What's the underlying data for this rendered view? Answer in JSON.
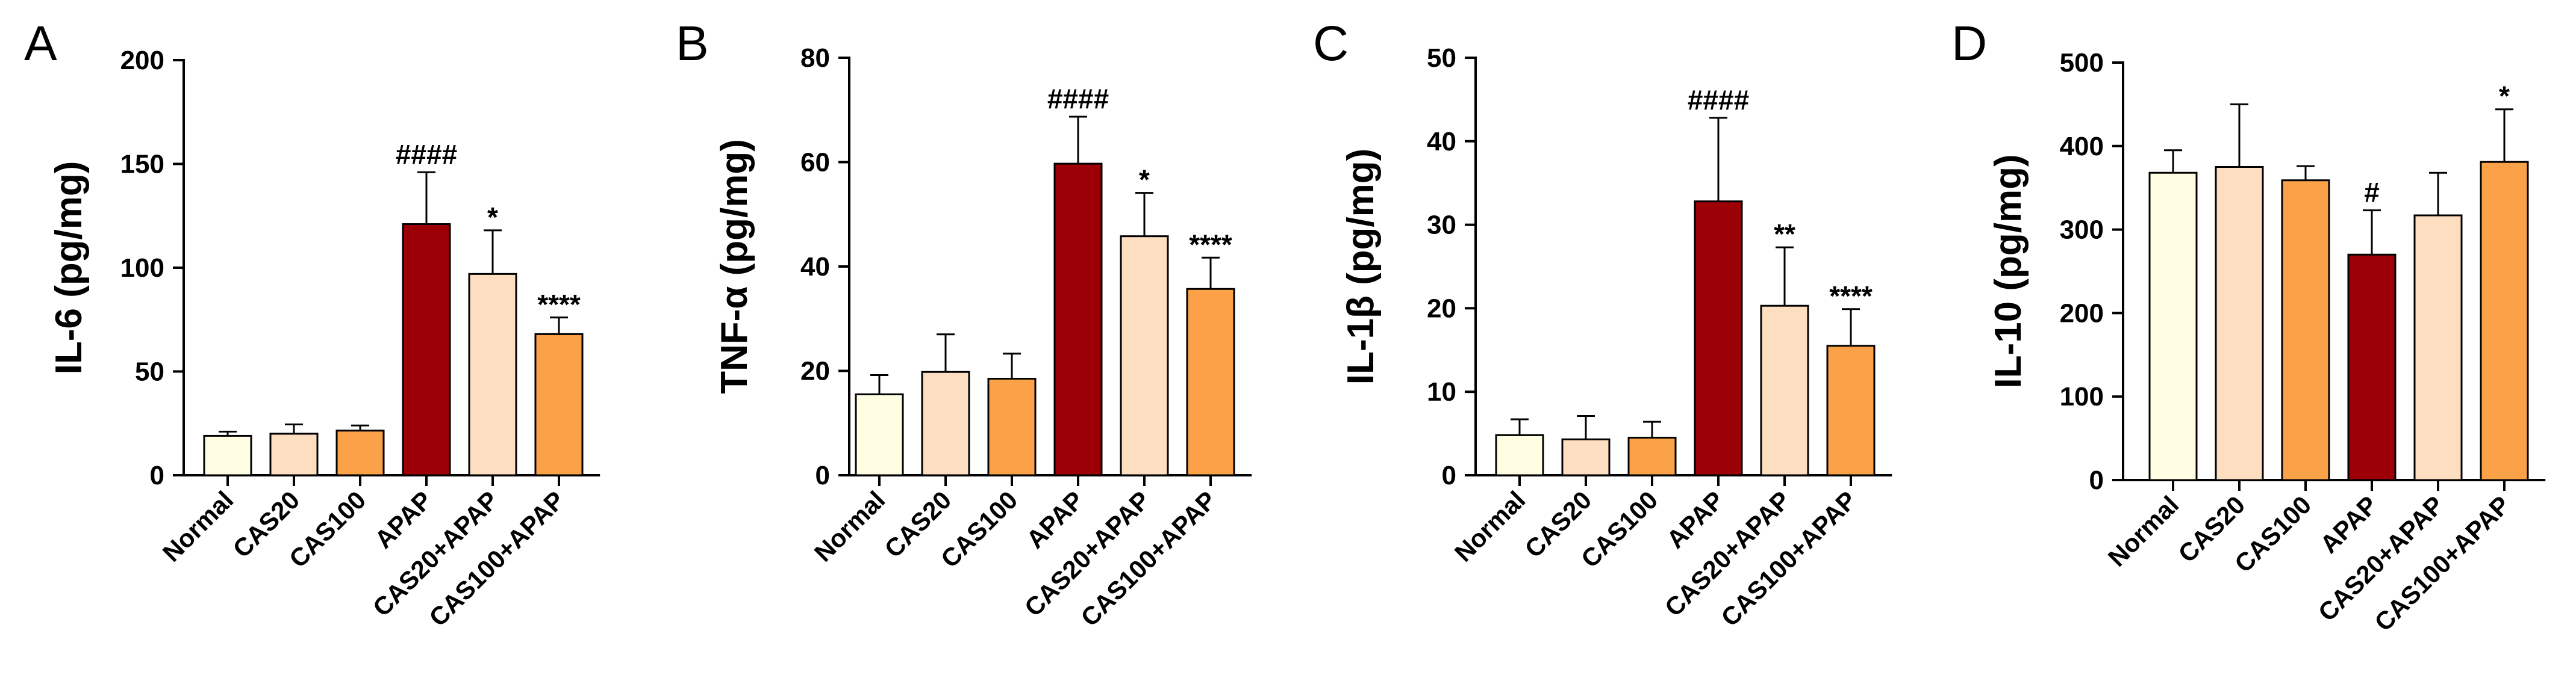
{
  "figure": {
    "colors": {
      "Normal": "#FFFDE2",
      "CAS20": "#FDDEC0",
      "CAS100": "#FBA148",
      "APAP": "#9C0006",
      "CAS20+APAP": "#FDDEC0",
      "CAS100+APAP": "#FBA148",
      "stroke": "#000000"
    }
  },
  "chart_data": [
    {
      "panel": "A",
      "type": "bar",
      "ylabel": "IL-6 (pg/mg)",
      "ylim": [
        0,
        200
      ],
      "yticks": [
        0,
        50,
        100,
        150,
        200
      ],
      "categories": [
        "Normal",
        "CAS20",
        "CAS100",
        "APAP",
        "CAS20+APAP",
        "CAS100+APAP"
      ],
      "values": [
        19,
        20,
        21.5,
        121,
        97,
        68
      ],
      "errors": [
        2,
        4.5,
        2.5,
        25,
        21,
        8
      ],
      "annotations": [
        "",
        "",
        "",
        "####",
        "*",
        "****"
      ]
    },
    {
      "panel": "B",
      "type": "bar",
      "ylabel": "TNF-α (pg/mg)",
      "ylim": [
        0,
        80
      ],
      "yticks": [
        0,
        20,
        40,
        60,
        80
      ],
      "categories": [
        "Normal",
        "CAS20",
        "CAS100",
        "APAP",
        "CAS20+APAP",
        "CAS100+APAP"
      ],
      "values": [
        15.5,
        19.8,
        18.5,
        59.7,
        45.8,
        35.7
      ],
      "errors": [
        3.7,
        7.2,
        4.8,
        9,
        8.3,
        6
      ],
      "annotations": [
        "",
        "",
        "",
        "####",
        "*",
        "****"
      ]
    },
    {
      "panel": "C",
      "type": "bar",
      "ylabel": "IL-1β (pg/mg)",
      "ylim": [
        0,
        50
      ],
      "yticks": [
        0,
        10,
        20,
        30,
        40,
        50
      ],
      "categories": [
        "Normal",
        "CAS20",
        "CAS100",
        "APAP",
        "CAS20+APAP",
        "CAS100+APAP"
      ],
      "values": [
        4.8,
        4.3,
        4.5,
        32.8,
        20.3,
        15.5
      ],
      "errors": [
        1.9,
        2.8,
        1.9,
        10,
        7,
        4.4
      ],
      "annotations": [
        "",
        "",
        "",
        "####",
        "**",
        "****"
      ]
    },
    {
      "panel": "D",
      "type": "bar",
      "ylabel": "IL-10 (pg/mg)",
      "ylim": [
        0,
        500
      ],
      "yticks": [
        0,
        100,
        200,
        300,
        400,
        500
      ],
      "categories": [
        "Normal",
        "CAS20",
        "CAS100",
        "APAP",
        "CAS20+APAP",
        "CAS100+APAP"
      ],
      "values": [
        368,
        375,
        359,
        270,
        317,
        381
      ],
      "errors": [
        27,
        75,
        17,
        53,
        51,
        63
      ],
      "annotations": [
        "",
        "",
        "",
        "#",
        "",
        "*"
      ]
    }
  ]
}
